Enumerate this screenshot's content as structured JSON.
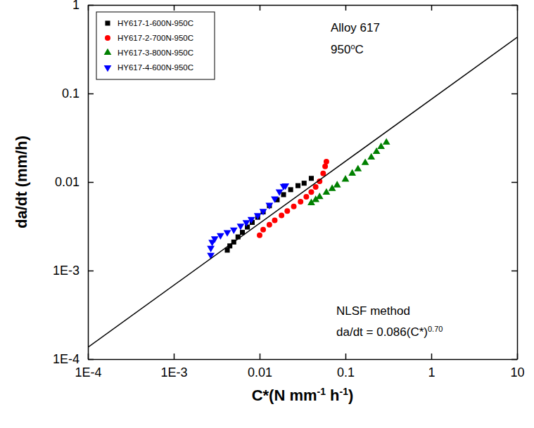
{
  "chart_data": {
    "type": "scatter",
    "log": true,
    "legend": "upper left",
    "xlabel": [
      {
        "text": "C*(N mm"
      },
      {
        "text": "-1",
        "sup": true
      },
      {
        "text": " h"
      },
      {
        "text": "-1",
        "sup": true
      },
      {
        "text": ")"
      }
    ],
    "ylabel": [
      {
        "text": "da/dt (mm/h)"
      }
    ],
    "xlim": [
      0.0001,
      10
    ],
    "ylim": [
      0.0001,
      1
    ],
    "xticks": [
      {
        "value": 0.0001,
        "label": "1E-4"
      },
      {
        "value": 0.001,
        "label": "1E-3"
      },
      0.01,
      0.1,
      1,
      10
    ],
    "yticks": [
      {
        "value": 0.0001,
        "label": "1E-4"
      },
      {
        "value": 0.001,
        "label": "1E-3"
      },
      0.01,
      0.1,
      1
    ],
    "annotations": [
      [
        {
          "text": "Alloy 617"
        }
      ],
      [
        {
          "text": "950"
        },
        {
          "text": "o",
          "sup": true
        },
        {
          "text": "C"
        }
      ],
      [
        {
          "text": "NLSF method"
        }
      ],
      [
        {
          "text": "da/dt = 0.086(C*)"
        },
        {
          "text": "0.70",
          "sup": true
        }
      ]
    ],
    "series": [
      {
        "name": "HY617-1-600N-950C",
        "color": "#000000",
        "marker": "square",
        "x": [
          0.0042,
          0.0045,
          0.005,
          0.0056,
          0.0063,
          0.0072,
          0.0082,
          0.0095,
          0.011,
          0.013,
          0.016,
          0.019,
          0.023,
          0.028,
          0.033,
          0.04
        ],
        "values": [
          0.0017,
          0.0019,
          0.0021,
          0.0024,
          0.0027,
          0.0031,
          0.0035,
          0.004,
          0.0046,
          0.0054,
          0.0063,
          0.0072,
          0.0082,
          0.0091,
          0.0097,
          0.011
        ]
      },
      {
        "name": "HY617-2-700N-950C",
        "color": "#ff0000",
        "marker": "circle",
        "x": [
          0.01,
          0.011,
          0.013,
          0.015,
          0.018,
          0.021,
          0.025,
          0.03,
          0.035,
          0.04,
          0.045,
          0.05,
          0.055,
          0.058,
          0.06
        ],
        "values": [
          0.0025,
          0.0029,
          0.0033,
          0.0037,
          0.0042,
          0.0047,
          0.0053,
          0.006,
          0.0068,
          0.0077,
          0.0088,
          0.0102,
          0.0125,
          0.015,
          0.017
        ]
      },
      {
        "name": "HY617-3-800N-950C",
        "color": "#008000",
        "marker": "triangle",
        "x": [
          0.04,
          0.045,
          0.05,
          0.06,
          0.07,
          0.08,
          0.1,
          0.12,
          0.14,
          0.17,
          0.2,
          0.23,
          0.26,
          0.3
        ],
        "values": [
          0.0058,
          0.0063,
          0.0068,
          0.0076,
          0.0084,
          0.0092,
          0.0107,
          0.0125,
          0.014,
          0.0165,
          0.019,
          0.022,
          0.025,
          0.028
        ]
      },
      {
        "name": "HY617-4-600N-950C",
        "color": "#0000ff",
        "marker": "triangle-down",
        "x": [
          0.0027,
          0.0027,
          0.0028,
          0.003,
          0.0035,
          0.0042,
          0.005,
          0.006,
          0.007,
          0.008,
          0.0095,
          0.011,
          0.013,
          0.015,
          0.017,
          0.019,
          0.02
        ],
        "values": [
          0.0015,
          0.0018,
          0.0021,
          0.0023,
          0.0025,
          0.0027,
          0.0029,
          0.0032,
          0.0035,
          0.0038,
          0.0042,
          0.0047,
          0.0055,
          0.0065,
          0.0078,
          0.009,
          0.0091
        ]
      },
      {
        "type": "line",
        "color": "#000000",
        "line_style": "solid",
        "x": [
          0.0001,
          10
        ],
        "values": [
          0.000136,
          0.431
        ]
      }
    ]
  }
}
